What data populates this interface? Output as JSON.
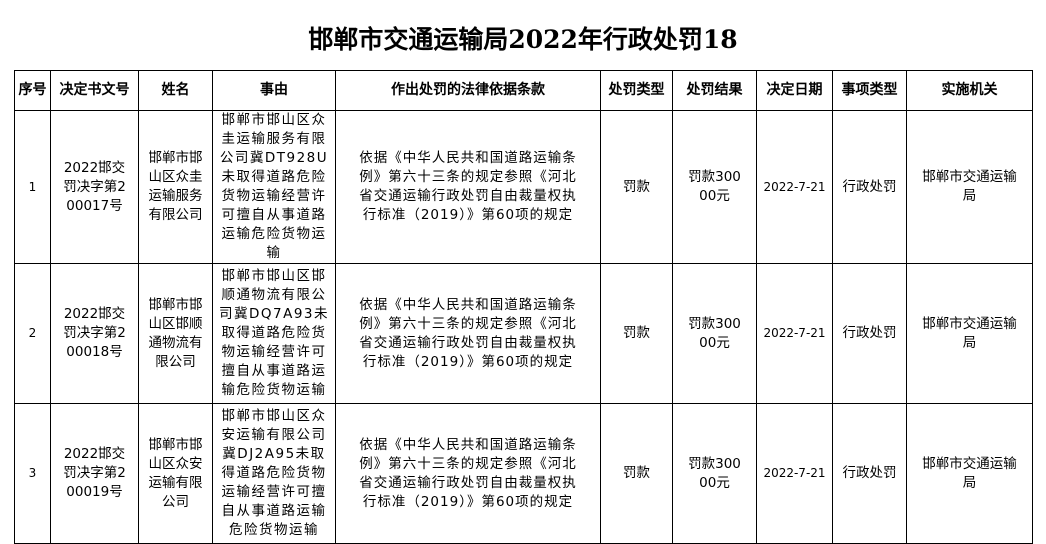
{
  "title": "邯郸市交通运输局2022年行政处罚18",
  "headers": [
    "序号",
    "决定书文号",
    "姓名",
    "事由",
    "作出处罚的法律依据条款",
    "处罚类型",
    "处罚结果",
    "决定日期",
    "事项类型",
    "实施机关"
  ],
  "rows": [
    {
      "no": "1",
      "doc": "2022邯交罚决字第200017号",
      "name": "邯郸市邯山区众圭运输服务有限公司",
      "reason": "邯郸市邯山区众圭运输服务有限公司冀DT928U未取得道路危险货物运输经营许可擅自从事道路运输危险货物运输",
      "basis": "依据《中华人民共和国道路运输条例》第六十三条的规定参照《河北省交通运输行政处罚自由裁量权执行标准（2019）》第60项的规定",
      "type": "罚款",
      "result": "罚款30000元",
      "date": "2022-7-21",
      "category": "行政处罚",
      "agency": "邯郸市交通运输局"
    },
    {
      "no": "2",
      "doc": "2022邯交罚决字第200018号",
      "name": "邯郸市邯山区邯顺通物流有限公司",
      "reason": "邯郸市邯山区邯顺通物流有限公司冀DQ7A93未取得道路危险货物运输经营许可擅自从事道路运输危险货物运输",
      "basis": "依据《中华人民共和国道路运输条例》第六十三条的规定参照《河北省交通运输行政处罚自由裁量权执行标准（2019）》第60项的规定",
      "type": "罚款",
      "result": "罚款30000元",
      "date": "2022-7-21",
      "category": "行政处罚",
      "agency": "邯郸市交通运输局"
    },
    {
      "no": "3",
      "doc": "2022邯交罚决字第200019号",
      "name": "邯郸市邯山区众安运输有限公司",
      "reason": "邯郸市邯山区众安运输有限公司冀DJ2A95未取得道路危险货物运输经营许可擅自从事道路运输危险货物运输",
      "basis": "依据《中华人民共和国道路运输条例》第六十三条的规定参照《河北省交通运输行政处罚自由裁量权执行标准（2019）》第60项的规定",
      "type": "罚款",
      "result": "罚款30000元",
      "date": "2022-7-21",
      "category": "行政处罚",
      "agency": "邯郸市交通运输局"
    }
  ]
}
